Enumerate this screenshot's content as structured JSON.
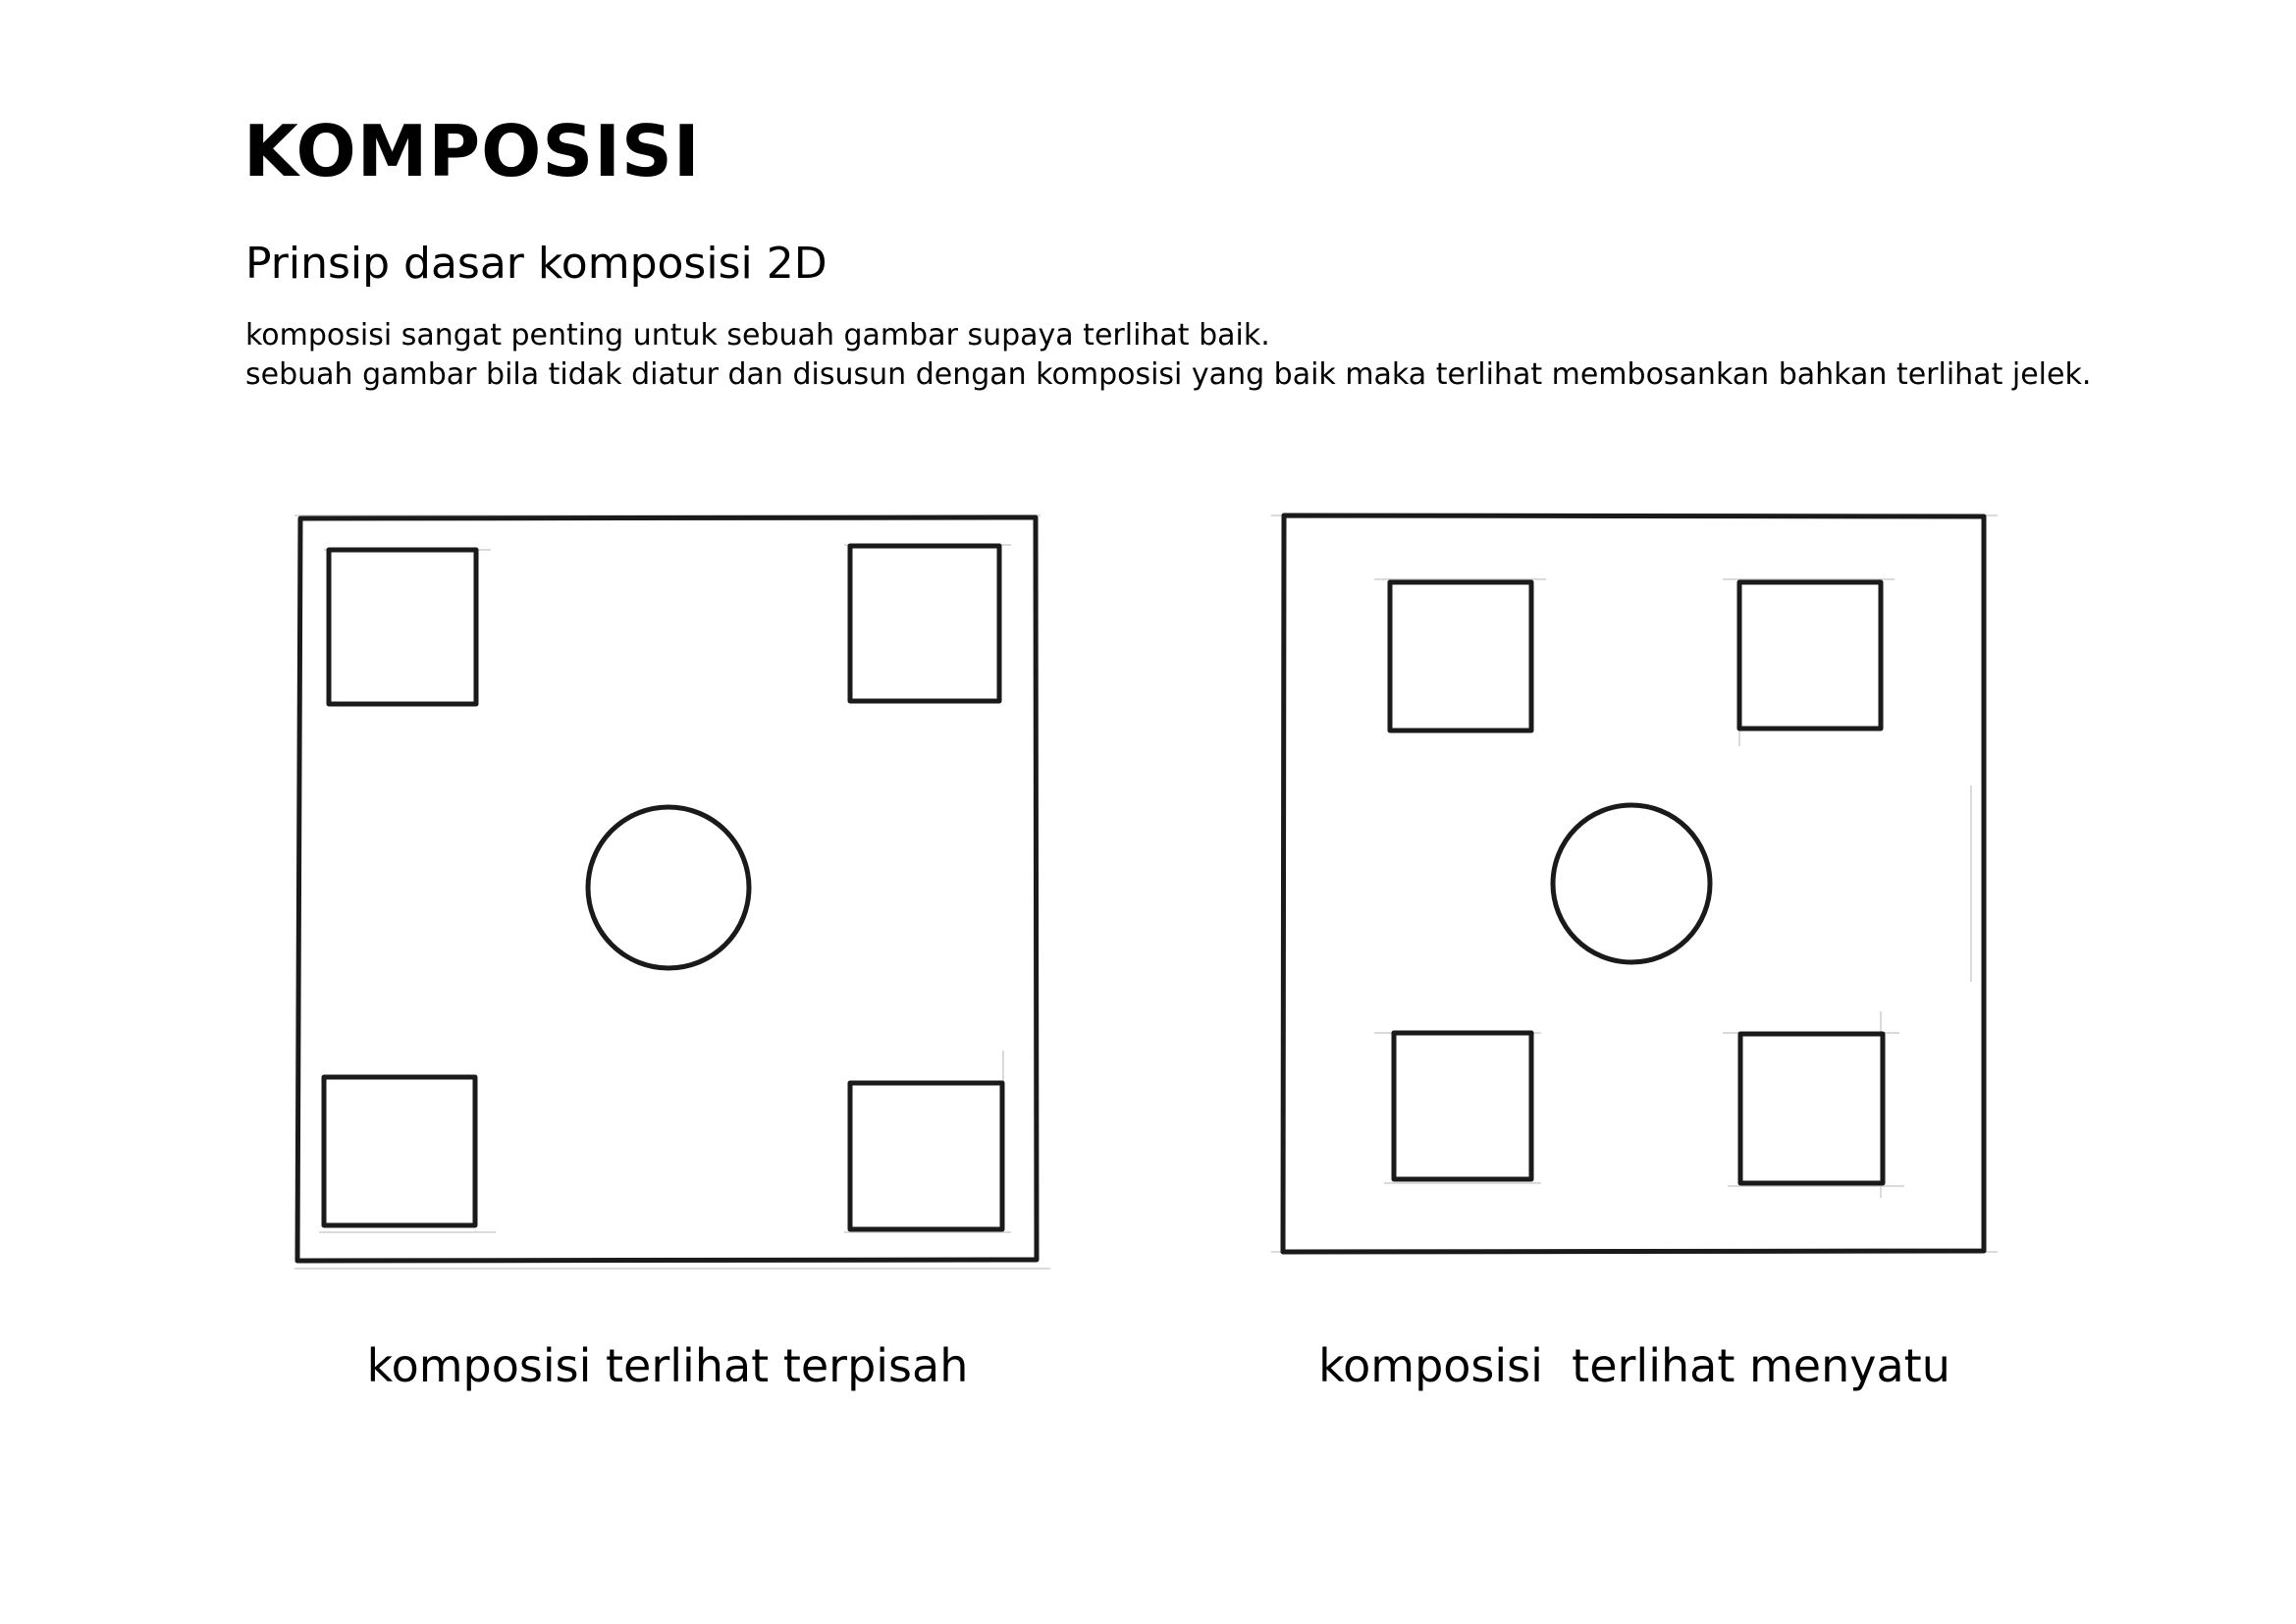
{
  "header": {
    "title": "KOMPOSISI",
    "subtitle": "Prinsip dasar komposisi 2D",
    "description": [
      "komposisi sangat penting untuk sebuah gambar supaya terlihat baik.",
      "sebuah gambar bila tidak diatur dan disusun dengan komposisi yang baik maka terlihat membosankan bahkan terlihat jelek."
    ]
  },
  "examples": [
    {
      "caption": "komposisi terlihat terpisah"
    },
    {
      "caption": "komposisi  terlihat menyatu"
    }
  ],
  "colors": {
    "ink": "#1a1a1a",
    "background": "#ffffff",
    "guide": "#cfcfcf"
  }
}
